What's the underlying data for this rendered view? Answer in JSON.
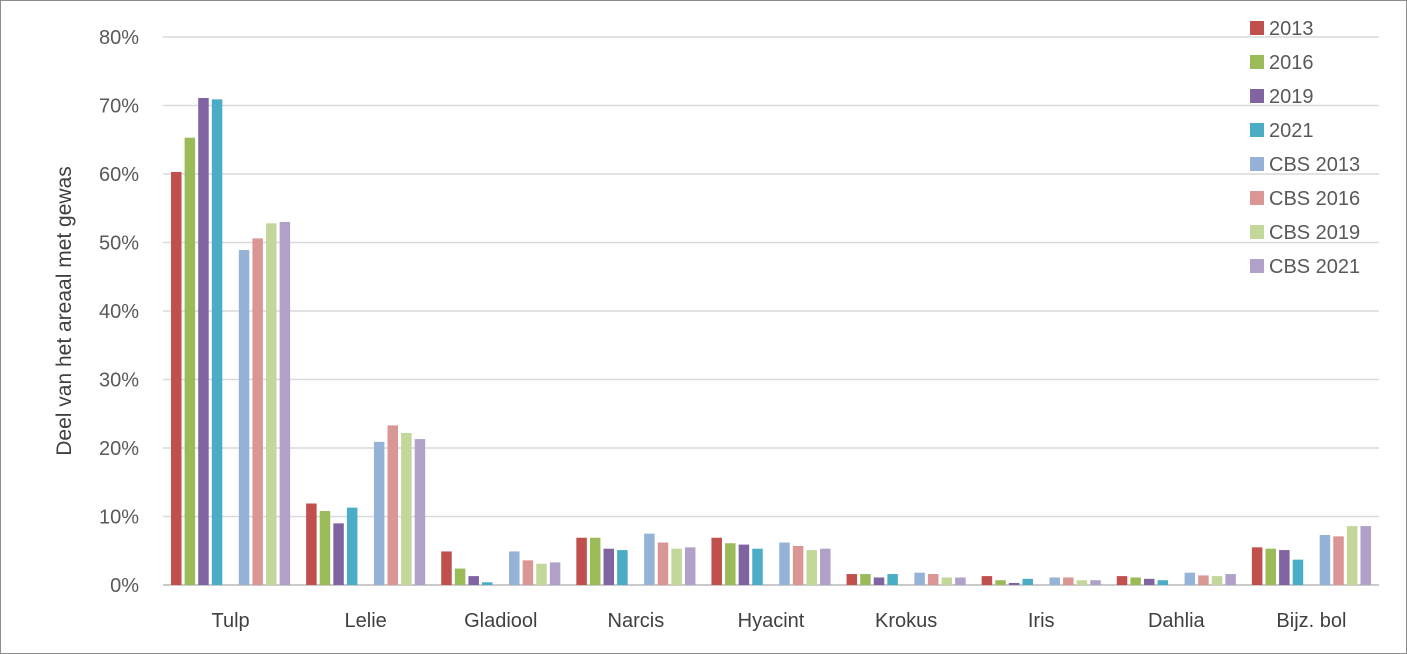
{
  "chart_data": {
    "type": "bar",
    "ylabel": "Deel van het areaal met gewas",
    "xlabel": "",
    "ylim": [
      0,
      80
    ],
    "y_ticks": [
      "0%",
      "10%",
      "20%",
      "30%",
      "40%",
      "50%",
      "60%",
      "70%",
      "80%"
    ],
    "y_tick_values": [
      0,
      10,
      20,
      30,
      40,
      50,
      60,
      70,
      80
    ],
    "grid": true,
    "legend_position": "top-right",
    "categories": [
      "Tulp",
      "Lelie",
      "Gladiool",
      "Narcis",
      "Hyacint",
      "Krokus",
      "Iris",
      "Dahlia",
      "Bijz. bol"
    ],
    "series": [
      {
        "name": "2013",
        "color": "#c0504d",
        "values": [
          60.3,
          11.9,
          4.9,
          6.9,
          6.9,
          1.6,
          1.3,
          1.3,
          5.5
        ]
      },
      {
        "name": "2016",
        "color": "#9bbb59",
        "values": [
          65.3,
          10.8,
          2.4,
          6.9,
          6.1,
          1.6,
          0.7,
          1.1,
          5.3
        ]
      },
      {
        "name": "2019",
        "color": "#8064a2",
        "values": [
          71.1,
          9.0,
          1.3,
          5.3,
          5.9,
          1.1,
          0.3,
          0.9,
          5.1
        ]
      },
      {
        "name": "2021",
        "color": "#4bacc6",
        "values": [
          70.9,
          11.3,
          0.4,
          5.1,
          5.3,
          1.6,
          0.9,
          0.7,
          3.7
        ]
      },
      {
        "name": "CBS 2013",
        "color": "#95b3d7",
        "values": [
          48.9,
          20.9,
          4.9,
          7.5,
          6.2,
          1.8,
          1.1,
          1.8,
          7.3
        ]
      },
      {
        "name": "CBS 2016",
        "color": "#da9694",
        "values": [
          50.6,
          23.3,
          3.6,
          6.2,
          5.7,
          1.6,
          1.1,
          1.4,
          7.1
        ]
      },
      {
        "name": "CBS 2019",
        "color": "#c4d79b",
        "values": [
          52.8,
          22.2,
          3.1,
          5.3,
          5.1,
          1.1,
          0.7,
          1.3,
          8.6
        ]
      },
      {
        "name": "CBS 2021",
        "color": "#b1a0c7",
        "values": [
          53.0,
          21.3,
          3.3,
          5.5,
          5.3,
          1.1,
          0.7,
          1.6,
          8.6
        ]
      }
    ]
  }
}
